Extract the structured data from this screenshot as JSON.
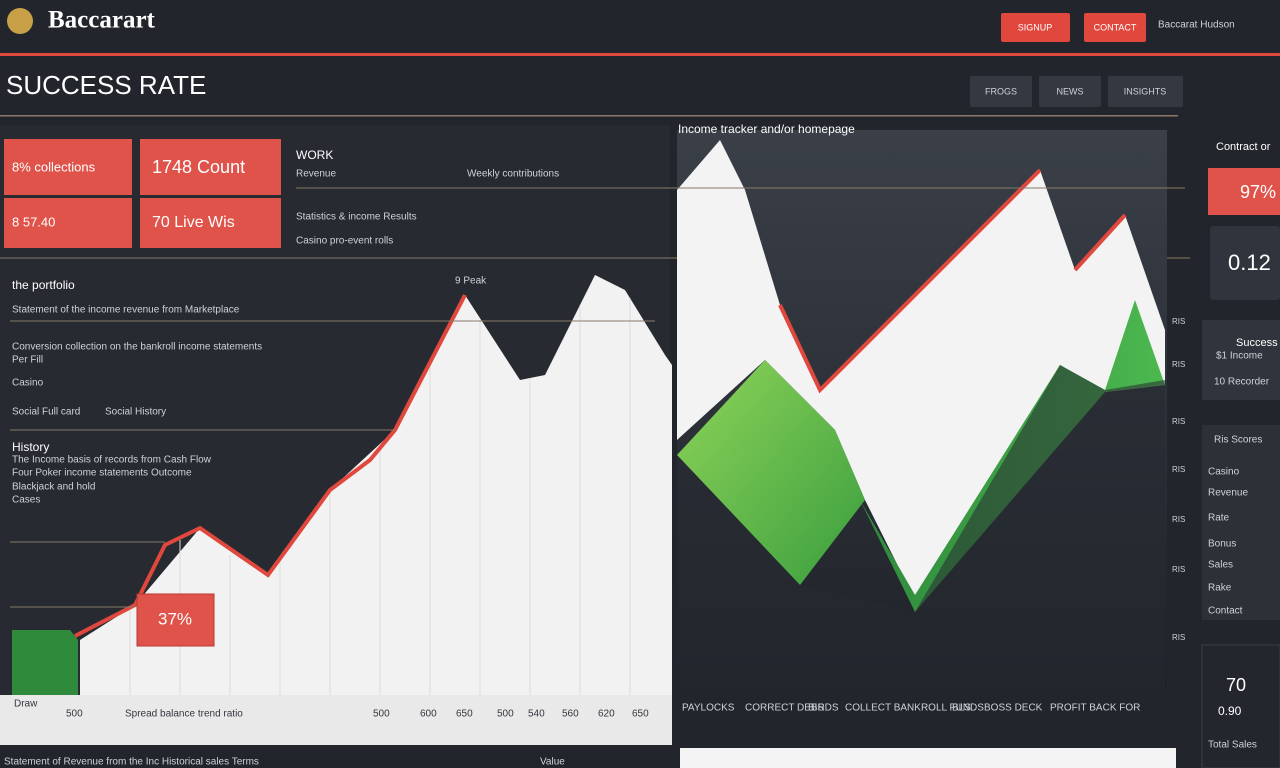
{
  "header": {
    "logo": "Baccarart",
    "buttons": [
      "SIGNUP",
      "CONTACT"
    ],
    "user": "Baccarat Hudson"
  },
  "title": "SUCCESS RATE",
  "tabs": [
    "FROGS",
    "NEWS",
    "INSIGHTS"
  ],
  "kpis": [
    "8% collections",
    "1748 Count",
    "8 57.40",
    "70 Live Wis"
  ],
  "panel": {
    "heading": "WORK",
    "rows": [
      "Revenue",
      "Weekly contributions",
      "Statistics & income Results",
      "Casino pro-event rolls"
    ]
  },
  "left_chart": {
    "title": "the portfolio",
    "subtitle": "Statement of the income revenue from Marketplace",
    "notes": [
      "Conversion collection on the bankroll income statements",
      "Per Fill",
      "Casino",
      "Social Full card",
      "Social History"
    ],
    "history": "History",
    "history_notes": [
      "The Income basis of records from Cash Flow",
      "Four Poker income statements Outcome",
      "Blackjack and hold",
      "Cases"
    ],
    "peak": "9 Peak",
    "callout": "37%",
    "axis_labels": [
      "Draw",
      "500",
      "Spread balance trend ratio",
      "500",
      "600",
      "650",
      "500",
      "540",
      "560",
      "620",
      "650"
    ],
    "footer": "Statement of Revenue from the Inc Historical sales Terms",
    "footer_right": "Value"
  },
  "right_chart": {
    "title": "Income tracker and/or homepage",
    "axis_labels": [
      "PAYLOCKS",
      "CORRECT DEBS",
      "BIRDS",
      "COLLECT BANKROLL FUNDS",
      "BLS",
      "BOSS DECK",
      "PROFIT BACK FOR"
    ],
    "right_ticks": [
      "RIS",
      "RIS",
      "RIS",
      "RIS",
      "RIS",
      "RIS",
      "RIS"
    ]
  },
  "sidebar": {
    "heading": "Contract or",
    "rate": "97%",
    "ratio": "0.12",
    "success": "Success",
    "income": "$1 Income",
    "recorder": "10 Recorder",
    "list_title": "Ris Scores",
    "list": [
      "Casino",
      "Revenue",
      "Rate",
      "Bonus",
      "Sales",
      "Rake",
      "Contact"
    ],
    "score": "70",
    "score_sub": "0.90",
    "score_foot": "Total Sales"
  }
}
